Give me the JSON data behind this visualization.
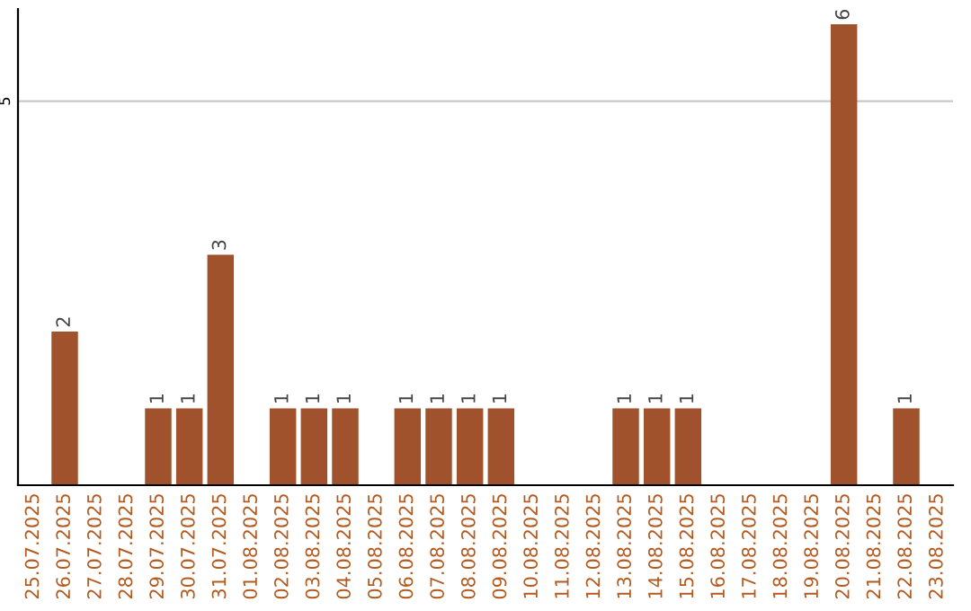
{
  "chart_data": {
    "type": "bar",
    "categories": [
      "25.07.2025",
      "26.07.2025",
      "27.07.2025",
      "28.07.2025",
      "29.07.2025",
      "30.07.2025",
      "31.07.2025",
      "01.08.2025",
      "02.08.2025",
      "03.08.2025",
      "04.08.2025",
      "05.08.2025",
      "06.08.2025",
      "07.08.2025",
      "08.08.2025",
      "09.08.2025",
      "10.08.2025",
      "11.08.2025",
      "12.08.2025",
      "13.08.2025",
      "14.08.2025",
      "15.08.2025",
      "16.08.2025",
      "17.08.2025",
      "18.08.2025",
      "19.08.2025",
      "20.08.2025",
      "21.08.2025",
      "22.08.2025",
      "23.08.2025"
    ],
    "values": [
      0,
      2,
      0,
      0,
      1,
      1,
      3,
      0,
      1,
      1,
      1,
      0,
      1,
      1,
      1,
      1,
      0,
      0,
      0,
      1,
      1,
      1,
      0,
      0,
      0,
      0,
      6,
      0,
      1,
      0
    ],
    "value_labels": [
      null,
      "2",
      null,
      null,
      "1",
      "1",
      "3",
      null,
      "1",
      "1",
      "1",
      null,
      "1",
      "1",
      "1",
      "1",
      null,
      null,
      null,
      "1",
      "1",
      "1",
      null,
      null,
      null,
      null,
      "6",
      null,
      "1",
      null
    ],
    "color": "#a0522d",
    "ylim": [
      0,
      6.2
    ],
    "yticks": [
      5
    ],
    "grid": "y"
  }
}
